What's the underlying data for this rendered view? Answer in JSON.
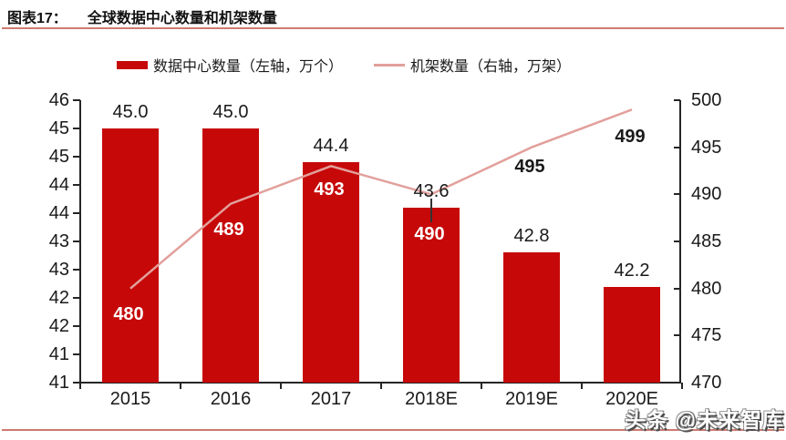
{
  "header": {
    "prefix": "图表17：",
    "title": "全球数据中心数量和机架数量"
  },
  "legend": [
    {
      "label": "数据中心数量（左轴，万个）",
      "swatch": "bar-swatch",
      "color": "#c70808"
    },
    {
      "label": "机架数量（右轴，万架）",
      "swatch": "line-swatch",
      "color": "#e2a09c"
    }
  ],
  "watermark": "头条 @未来智库",
  "colors": {
    "bar": "#c70808",
    "line": "#e2a09c",
    "rule": "#ce7a70",
    "axis": "#262626",
    "label_inside": "#ffffff",
    "label_outside": "#1a1a1a"
  },
  "chart_data": {
    "type": "combo-bar-line",
    "title": "全球数据中心数量和机架数量",
    "categories": [
      "2015",
      "2016",
      "2017",
      "2018E",
      "2019E",
      "2020E"
    ],
    "series": [
      {
        "name": "数据中心数量（左轴，万个）",
        "type": "bar",
        "axis": "left",
        "values": [
          45.0,
          45.0,
          44.4,
          43.6,
          42.8,
          42.2
        ],
        "labels": [
          "45.0",
          "45.0",
          "44.4",
          "43.6",
          "42.8",
          "42.2"
        ]
      },
      {
        "name": "机架数量（右轴，万架）",
        "type": "line",
        "axis": "right",
        "values": [
          480,
          489,
          493,
          490,
          495,
          499
        ],
        "labels": [
          "480",
          "489",
          "493",
          "490",
          "495",
          "499"
        ]
      }
    ],
    "left_axis": {
      "tick_labels": [
        "46",
        "45",
        "45",
        "44",
        "44",
        "43",
        "43",
        "42",
        "42",
        "41",
        "41"
      ],
      "implied_range": [
        41,
        46
      ]
    },
    "right_axis": {
      "tick_labels": [
        "500",
        "495",
        "490",
        "485",
        "480",
        "475",
        "470"
      ],
      "range": [
        470,
        500
      ]
    },
    "grid": false,
    "legend_position": "top",
    "annotation": {
      "leader_line_category": "2018E"
    }
  }
}
